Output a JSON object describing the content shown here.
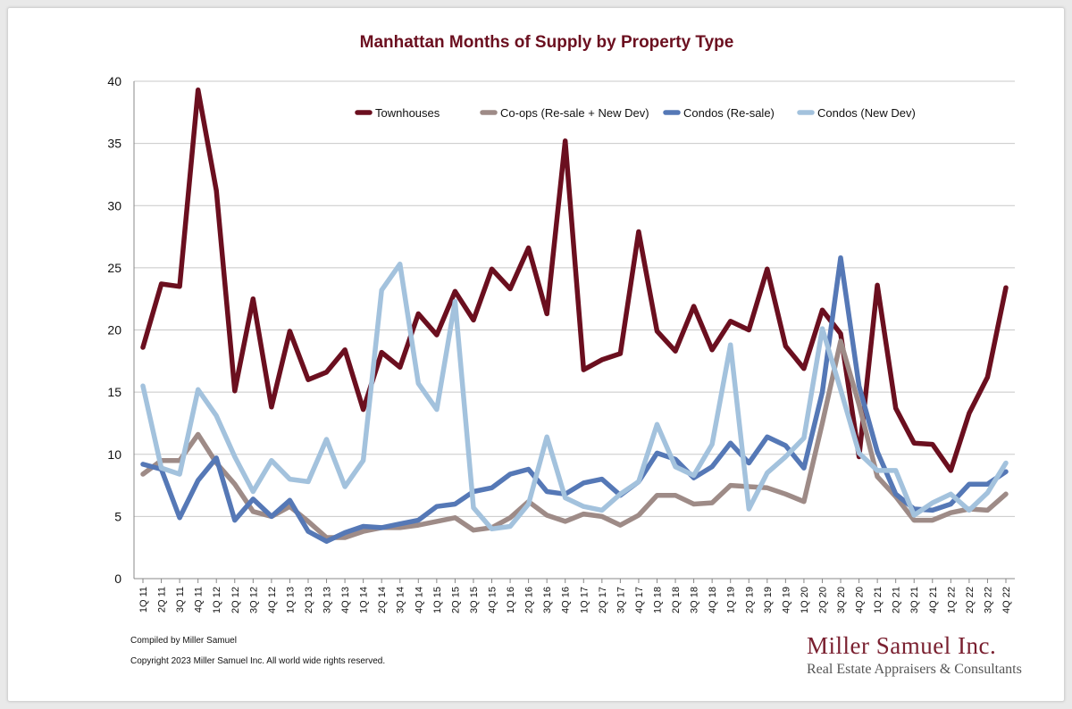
{
  "title": "Manhattan Months of Supply by Property Type",
  "footnotes": {
    "compiled": "Compiled by Miller Samuel",
    "copyright": "Copyright 2023 Miller Samuel Inc.  All world wide rights reserved."
  },
  "brand": {
    "name": "Miller Samuel Inc.",
    "tagline": "Real Estate Appraisers & Consultants"
  },
  "chart_data": {
    "type": "line",
    "title": "Manhattan Months of Supply by Property Type",
    "xlabel": "",
    "ylabel": "",
    "ylim": [
      0,
      40
    ],
    "yticks": [
      0,
      5,
      10,
      15,
      20,
      25,
      30,
      35,
      40
    ],
    "grid": true,
    "legend_position": "top",
    "categories": [
      "1Q 11",
      "2Q 11",
      "3Q 11",
      "4Q 11",
      "1Q 12",
      "2Q 12",
      "3Q 12",
      "4Q 12",
      "1Q 13",
      "2Q 13",
      "3Q 13",
      "4Q 13",
      "1Q 14",
      "2Q 14",
      "3Q 14",
      "4Q 14",
      "1Q 15",
      "2Q 15",
      "3Q 15",
      "4Q 15",
      "1Q 16",
      "2Q 16",
      "3Q 16",
      "4Q 16",
      "1Q 17",
      "2Q 17",
      "3Q 17",
      "4Q 17",
      "1Q 18",
      "2Q 18",
      "3Q 18",
      "4Q 18",
      "1Q 19",
      "2Q 19",
      "3Q 19",
      "4Q 19",
      "1Q 20",
      "2Q 20",
      "3Q 20",
      "4Q 20",
      "1Q 21",
      "2Q 21",
      "3Q 21",
      "4Q 21",
      "1Q 22",
      "2Q 22",
      "3Q 22",
      "4Q 22"
    ],
    "series": [
      {
        "name": "Townhouses",
        "color": "#6b0f1f",
        "values": [
          18.6,
          23.7,
          23.5,
          39.3,
          31.2,
          15.1,
          22.5,
          13.8,
          19.9,
          16.0,
          16.6,
          18.4,
          13.6,
          18.2,
          17.0,
          21.3,
          19.6,
          23.1,
          20.8,
          24.9,
          23.3,
          26.6,
          21.3,
          35.2,
          16.8,
          17.6,
          18.1,
          27.9,
          19.9,
          18.3,
          21.9,
          18.4,
          20.7,
          20.0,
          24.9,
          18.7,
          16.9,
          21.6,
          19.7,
          9.8,
          23.6,
          13.7,
          10.9,
          10.8,
          8.7,
          13.3,
          16.2,
          23.4
        ]
      },
      {
        "name": "Co-ops (Re-sale + New Dev)",
        "color": "#9e8b87",
        "values": [
          8.4,
          9.5,
          9.5,
          11.6,
          9.3,
          7.6,
          5.4,
          5.0,
          5.8,
          4.6,
          3.3,
          3.3,
          3.8,
          4.1,
          4.1,
          4.3,
          4.6,
          4.9,
          3.9,
          4.1,
          4.9,
          6.2,
          5.1,
          4.6,
          5.2,
          5.0,
          4.3,
          5.1,
          6.7,
          6.7,
          6.0,
          6.1,
          7.5,
          7.4,
          7.3,
          6.8,
          6.2,
          12.5,
          19.1,
          14.0,
          8.2,
          6.6,
          4.7,
          4.7,
          5.3,
          5.6,
          5.5,
          6.8
        ]
      },
      {
        "name": "Condos (Re-sale)",
        "color": "#5578b6",
        "values": [
          9.2,
          8.8,
          4.9,
          7.9,
          9.7,
          4.7,
          6.4,
          5.0,
          6.3,
          3.8,
          3.0,
          3.7,
          4.2,
          4.1,
          4.4,
          4.7,
          5.8,
          6.0,
          7.0,
          7.3,
          8.4,
          8.8,
          7.0,
          6.8,
          7.7,
          8.0,
          6.7,
          7.8,
          10.1,
          9.6,
          8.1,
          9.0,
          10.9,
          9.3,
          11.4,
          10.7,
          8.9,
          15.0,
          25.8,
          15.5,
          10.2,
          6.8,
          5.6,
          5.5,
          6.0,
          7.6,
          7.6,
          8.6
        ]
      },
      {
        "name": "Condos (New Dev)",
        "color": "#a3c2dd",
        "values": [
          15.5,
          8.9,
          8.4,
          15.2,
          13.1,
          9.8,
          7.0,
          9.5,
          8.0,
          7.8,
          11.2,
          7.4,
          9.5,
          23.2,
          25.3,
          15.7,
          13.6,
          22.3,
          5.7,
          4.0,
          4.2,
          6.0,
          11.4,
          6.5,
          5.8,
          5.5,
          6.8,
          7.8,
          12.4,
          9.0,
          8.3,
          10.8,
          18.8,
          5.6,
          8.5,
          9.8,
          11.3,
          20.1,
          15.2,
          10.1,
          8.7,
          8.7,
          5.1,
          6.1,
          6.8,
          5.5,
          6.9,
          9.3
        ]
      }
    ]
  }
}
